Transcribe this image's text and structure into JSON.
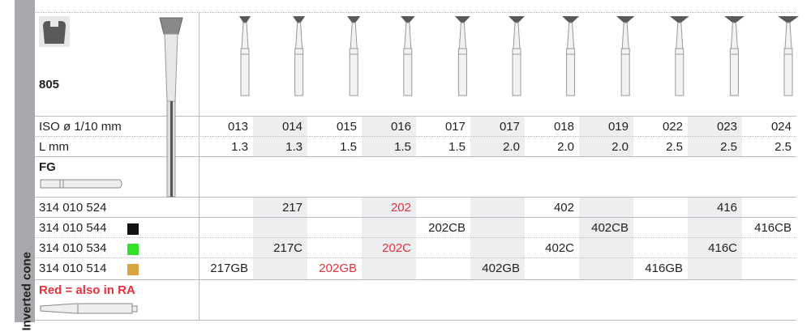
{
  "section": "Inverted cone",
  "model": "805",
  "shank_label": "FG",
  "rows": {
    "iso": {
      "label": "ISO ø 1/10 mm",
      "values": [
        "013",
        "014",
        "015",
        "016",
        "017",
        "017",
        "018",
        "019",
        "022",
        "023",
        "024"
      ]
    },
    "length": {
      "label": "L mm",
      "values": [
        "1.3",
        "1.3",
        "1.5",
        "1.5",
        "1.5",
        "2.0",
        "2.0",
        "2.0",
        "2.5",
        "2.5",
        "2.5"
      ]
    }
  },
  "variants": [
    {
      "code": "314 010 524",
      "swatch": null,
      "values": [
        "",
        "217",
        "",
        "202",
        "",
        "",
        "402",
        "",
        "",
        "416",
        ""
      ],
      "red": [
        false,
        false,
        false,
        true,
        false,
        false,
        false,
        false,
        false,
        false,
        false
      ]
    },
    {
      "code": "314 010 544",
      "swatch": "#111111",
      "values": [
        "",
        "",
        "",
        "",
        "202CB",
        "",
        "",
        "402CB",
        "",
        "",
        "416CB"
      ],
      "red": [
        false,
        false,
        false,
        false,
        false,
        false,
        false,
        false,
        false,
        false,
        false
      ]
    },
    {
      "code": "314 010 534",
      "swatch": "#33e02a",
      "values": [
        "",
        "217C",
        "",
        "202C",
        "",
        "",
        "402C",
        "",
        "",
        "416C",
        ""
      ],
      "red": [
        false,
        false,
        false,
        true,
        false,
        false,
        false,
        false,
        false,
        false,
        false
      ]
    },
    {
      "code": "314 010 514",
      "swatch": "#d9a43e",
      "values": [
        "217GB",
        "",
        "202GB",
        "",
        "",
        "402GB",
        "",
        "",
        "416GB",
        "",
        ""
      ],
      "red": [
        false,
        false,
        true,
        false,
        false,
        false,
        false,
        false,
        false,
        false,
        false
      ]
    }
  ],
  "legend": "Red = also in RA",
  "colors": {
    "red": "#e8303a",
    "shade": "#eceeef",
    "sidebar": "#a7a9ac",
    "bur_head": "#58595b"
  }
}
